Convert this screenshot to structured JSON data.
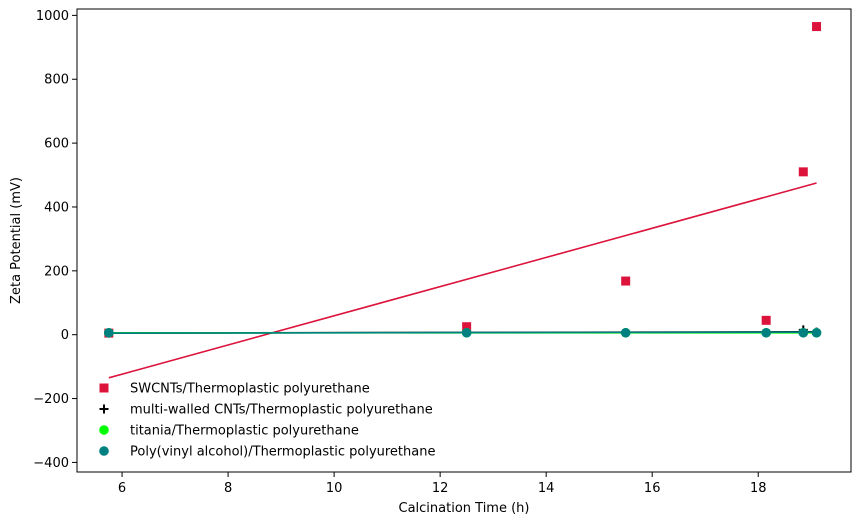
{
  "chart_data": {
    "type": "scatter",
    "xlabel": "Calcination Time (h)",
    "ylabel": "Zeta Potential (mV)",
    "xlim": [
      5.15,
      19.75
    ],
    "ylim": [
      -430,
      1020
    ],
    "xticks": [
      6,
      8,
      10,
      12,
      14,
      16,
      18
    ],
    "yticks": [
      -400,
      -200,
      0,
      200,
      400,
      600,
      800,
      1000
    ],
    "grid": false,
    "legend_position": "lower-left",
    "series": [
      {
        "name": "SWCNTs/Thermoplastic polyurethane",
        "marker": "square",
        "color": "#dc143c",
        "x": [
          5.75,
          12.5,
          15.5,
          18.15,
          18.85,
          19.1
        ],
        "y": [
          5,
          25,
          168,
          45,
          510,
          965
        ],
        "trend": {
          "x": [
            5.75,
            19.1
          ],
          "y": [
            -135,
            475
          ]
        }
      },
      {
        "name": "multi-walled CNTs/Thermoplastic polyurethane",
        "marker": "plus",
        "color": "#000000",
        "x": [
          5.75,
          12.5,
          15.5,
          18.15,
          18.85,
          19.1
        ],
        "y": [
          5,
          6,
          7,
          7,
          15,
          8
        ],
        "trend": {
          "x": [
            5.75,
            19.1
          ],
          "y": [
            5,
            9
          ]
        }
      },
      {
        "name": "titania/Thermoplastic polyurethane",
        "marker": "circle",
        "color": "#00ff00",
        "x": [
          5.75,
          12.5,
          15.5,
          18.15,
          18.85,
          19.1
        ],
        "y": [
          6,
          6,
          6,
          6,
          6,
          6
        ],
        "trend": {
          "x": [
            5.75,
            19.1
          ],
          "y": [
            6,
            6
          ]
        }
      },
      {
        "name": "Poly(vinyl alcohol)/Thermoplastic polyurethane",
        "marker": "circle",
        "color": "#008080",
        "x": [
          5.75,
          12.5,
          15.5,
          18.15,
          18.85,
          19.1
        ],
        "y": [
          6,
          6,
          6,
          6,
          6,
          6
        ],
        "trend": {
          "x": [
            5.75,
            19.1
          ],
          "y": [
            5,
            8
          ]
        }
      }
    ]
  }
}
